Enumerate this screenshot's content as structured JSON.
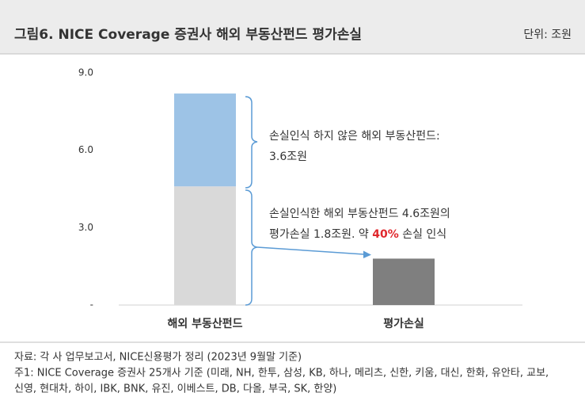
{
  "header": {
    "title": "그림6. NICE Coverage 증권사 해외 부동산펀드 평가손실",
    "unit": "단위: 조원"
  },
  "chart_data": {
    "type": "stacked_bar",
    "categories": [
      "해외 부동산펀드",
      "평가손실"
    ],
    "series": [
      {
        "color": "#d9d9d9",
        "values": [
          4.6,
          null
        ]
      },
      {
        "color": "#9dc3e6",
        "values": [
          3.6,
          null
        ]
      },
      {
        "color": "#7f7f7f",
        "values": [
          null,
          1.8
        ]
      }
    ],
    "ylim": [
      0,
      9
    ],
    "yticks": [
      {
        "value": 0,
        "label": "-"
      },
      {
        "value": 3,
        "label": "3.0"
      },
      {
        "value": 6,
        "label": "6.0"
      },
      {
        "value": 9,
        "label": "9.0"
      }
    ],
    "annotations": [
      [
        "손실인식 하지 않은 해외 부동산펀드:",
        "3.6조원"
      ],
      [
        "손실인식한 해외 부동산펀드 4.6조원의",
        "평가손실 1.8조원. 약 ",
        "40%",
        " 손실 인식"
      ]
    ]
  },
  "footer": {
    "source": "자료: 각 사 업무보고서, NICE신용평가 정리 (2023년 9월말 기준)",
    "notes": [
      "주1: NICE Coverage 증권사 25개사 기준 (미래, NH, 한투, 삼성, KB, 하나, 메리츠, 신한, 키움, 대신, 한화, 유안타, 교보,",
      "신영, 현대차, 하이, IBK, BNK, 유진, 이베스트, DB, 다올, 부국, SK, 한양)"
    ]
  }
}
